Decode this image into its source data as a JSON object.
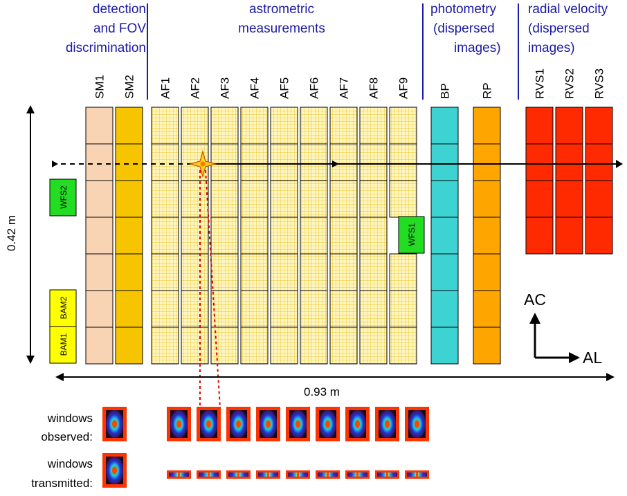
{
  "headers": {
    "detection": [
      "detection",
      "and FOV",
      "discrimination"
    ],
    "astrometric": [
      "astrometric",
      "measurements"
    ],
    "photometry": [
      "photometry",
      "(dispersed",
      "images)"
    ],
    "radial": [
      "radial velocity",
      "(dispersed",
      "images)"
    ]
  },
  "columns": {
    "sm": [
      "SM1",
      "SM2"
    ],
    "af": [
      "AF1",
      "AF2",
      "AF3",
      "AF4",
      "AF5",
      "AF6",
      "AF7",
      "AF8",
      "AF9"
    ],
    "bp": "BP",
    "rp": "RP",
    "rvs": [
      "RVS1",
      "RVS2",
      "RVS3"
    ]
  },
  "sensors": {
    "wfs1": "WFS1",
    "wfs2": "WFS2",
    "bam1": "BAM1",
    "bam2": "BAM2"
  },
  "dimensions": {
    "height": "0.42 m",
    "width": "0.93 m"
  },
  "axes": {
    "ac": "AC",
    "al": "AL"
  },
  "windows": {
    "observed": [
      "windows",
      "observed:"
    ],
    "transmitted": [
      "windows",
      "transmitted:"
    ]
  },
  "colors": {
    "header_blue": "#1a1aa6",
    "sm1": "#f9d4b4",
    "sm2": "#f6c500",
    "af_grid": "#fff5bf",
    "af_line": "#e8b800",
    "bp": "#3ed3d3",
    "rp": "#ffa500",
    "rvs": "#ff2a00",
    "wfs": "#22dd22",
    "bam": "#ffff00",
    "window_border": "#ff3300",
    "trace": "#e00000"
  }
}
